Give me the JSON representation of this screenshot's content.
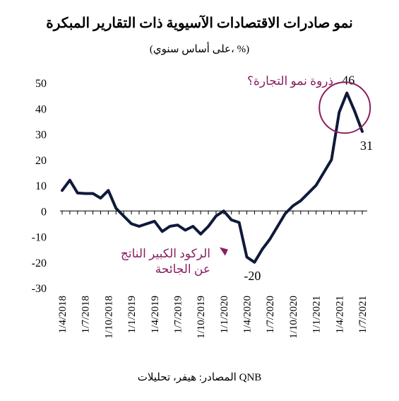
{
  "colors": {
    "line": "#0f1a3a",
    "accent": "#8a1e5e",
    "axis": "#000000"
  },
  "chart_data": {
    "type": "line",
    "title": "نمو صادرات الاقتصادات الآسيوية ذات التقارير المبكرة",
    "subtitle": "(على أساس سنوي، %)",
    "source": "المصادر: هيفر، تحليلات QNB",
    "xlabel": "",
    "ylabel": "",
    "ylim": [
      -30,
      50
    ],
    "yticks": [
      50,
      40,
      30,
      20,
      10,
      0,
      -10,
      -20,
      -30
    ],
    "x_tick_labels": [
      "1/4/2018",
      "1/7/2018",
      "1/10/2018",
      "1/1/2019",
      "1/4/2019",
      "1/7/2019",
      "1/10/2019",
      "1/1/2020",
      "1/4/2020",
      "1/7/2020",
      "1/10/2020",
      "1/1/2021",
      "1/4/2021",
      "1/7/2021"
    ],
    "x": [
      "2018-04",
      "2018-05",
      "2018-06",
      "2018-07",
      "2018-08",
      "2018-09",
      "2018-10",
      "2018-11",
      "2018-12",
      "2019-01",
      "2019-02",
      "2019-03",
      "2019-04",
      "2019-05",
      "2019-06",
      "2019-07",
      "2019-08",
      "2019-09",
      "2019-10",
      "2019-11",
      "2019-12",
      "2020-01",
      "2020-02",
      "2020-03",
      "2020-04",
      "2020-05",
      "2020-06",
      "2020-07",
      "2020-08",
      "2020-09",
      "2020-10",
      "2020-11",
      "2020-12",
      "2021-01",
      "2021-02",
      "2021-03",
      "2021-04",
      "2021-05",
      "2021-06",
      "2021-07"
    ],
    "series": [
      {
        "values": [
          8,
          12,
          7,
          6.8,
          6.8,
          5,
          8,
          1,
          -2,
          -5,
          -6,
          -5,
          -4,
          -8,
          -6,
          -5.5,
          -7.5,
          -6,
          -9,
          -6,
          -2,
          0,
          -3.5,
          -4.5,
          -18,
          -20,
          -15,
          -11,
          -6,
          -1,
          2,
          4,
          7,
          10,
          15,
          20,
          38.5,
          46,
          39,
          31
        ]
      }
    ],
    "annotations": [
      {
        "text": "46",
        "x": "2021-05",
        "y": 46
      },
      {
        "text": "31",
        "x": "2021-07",
        "y": 31
      },
      {
        "text": "-20",
        "x": "2020-05",
        "y": -20
      },
      {
        "text": "ذروة نمو التجارة؟",
        "target_x": "2021-05",
        "target_y": 40
      },
      {
        "text_lines": [
          "الركود الكبير الناتج",
          "عن الجائحة"
        ],
        "target_x": "2020-01",
        "target_y": -15
      }
    ],
    "grid": false,
    "legend": "none"
  }
}
